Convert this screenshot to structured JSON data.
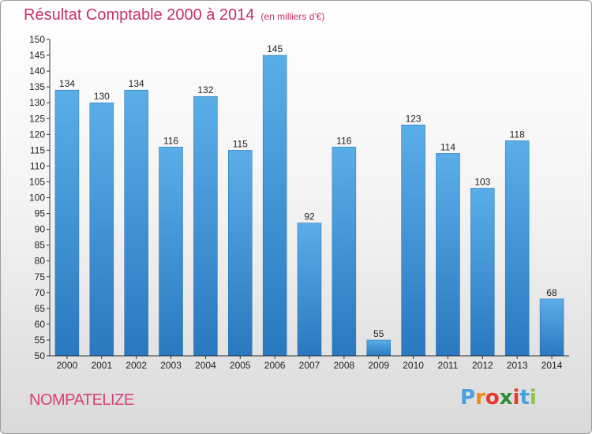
{
  "title": "Résultat Comptable 2000 à 2014",
  "unit": "(en milliers d'€)",
  "commune": "NOMPATELIZE",
  "logo": {
    "text": "Proxiti",
    "letters": [
      "P",
      "r",
      "o",
      "x",
      "i",
      "t",
      "i"
    ],
    "colors": [
      "#4a9fe0",
      "#f08a1c",
      "#e8382e",
      "#2f8c3a",
      "#e8382e",
      "#4a9fe0",
      "#8ec641"
    ]
  },
  "colors": {
    "bar_top": "#5aaee8",
    "bar_bottom": "#2a78bf",
    "title": "#c8306a",
    "axis": "#333333"
  },
  "chart_data": {
    "type": "bar",
    "title": "Résultat Comptable 2000 à 2014",
    "xlabel": "",
    "ylabel": "",
    "categories": [
      "2000",
      "2001",
      "2002",
      "2003",
      "2004",
      "2005",
      "2006",
      "2007",
      "2008",
      "2009",
      "2010",
      "2011",
      "2012",
      "2013",
      "2014"
    ],
    "values": [
      134,
      130,
      134,
      116,
      132,
      115,
      145,
      92,
      116,
      55,
      123,
      114,
      103,
      118,
      68
    ],
    "ylim": [
      50,
      150
    ],
    "yticks": [
      50,
      55,
      60,
      65,
      70,
      75,
      80,
      85,
      90,
      95,
      100,
      105,
      110,
      115,
      120,
      125,
      130,
      135,
      140,
      145,
      150
    ],
    "grid": false,
    "data_labels": true
  }
}
